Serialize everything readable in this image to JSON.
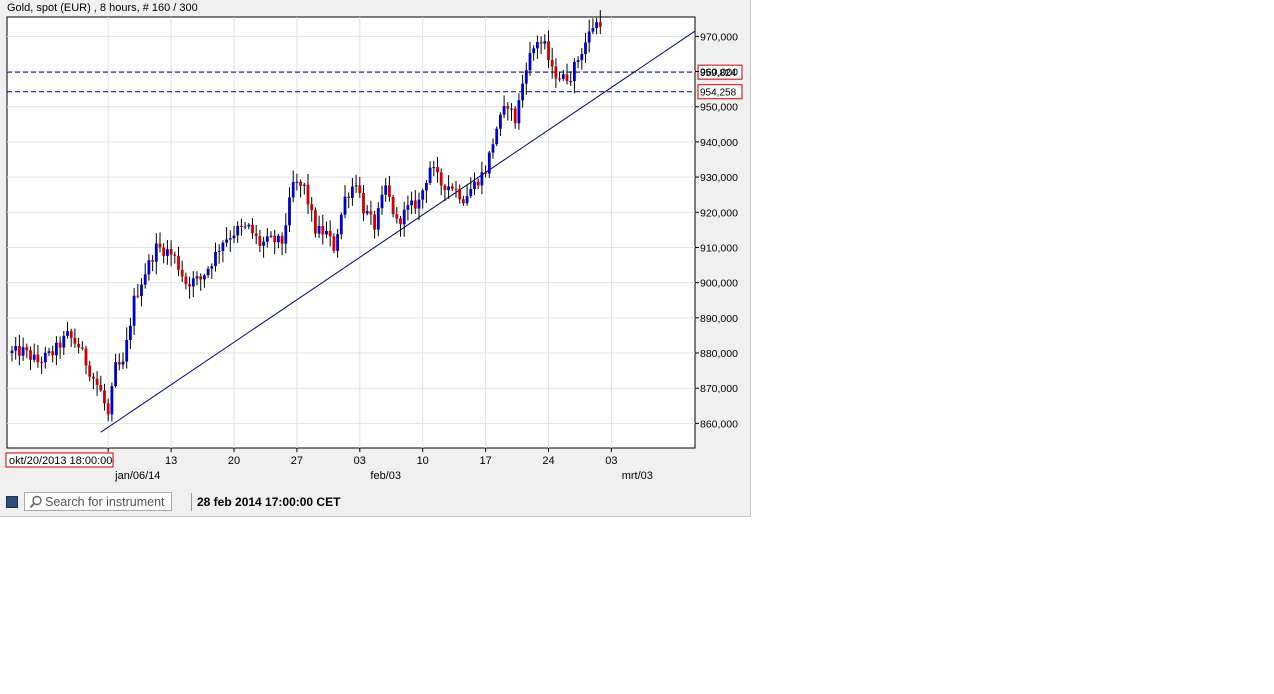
{
  "header": {
    "title": "Gold, spot (EUR) , 8 hours, # 160 / 300"
  },
  "footer": {
    "search_placeholder": "Search for instrument",
    "datetime": "28 feb 2014 17:00:00 CET",
    "series_color": "#2f4d7a"
  },
  "chart_data": {
    "type": "candlestick",
    "title": "Gold, spot (EUR) , 8 hours, # 160 / 300",
    "ylim": [
      853000,
      975500
    ],
    "y_ticks": [
      "860,000",
      "870,000",
      "880,000",
      "890,000",
      "900,000",
      "910,000",
      "920,000",
      "930,000",
      "940,000",
      "950,000",
      "960,000",
      "970,000"
    ],
    "x_ticks": [
      "06",
      "13",
      "20",
      "27",
      "03",
      "10",
      "17",
      "24",
      "03"
    ],
    "x_month_labels": [
      "jan/06/14",
      "feb/03",
      "mrt/03"
    ],
    "start_label": "okt/20/2013 18:00:00",
    "candle_count": 160,
    "up_color": "#0000cc",
    "down_color": "#cc0000",
    "grid": true,
    "horizontal_lines": [
      {
        "label": "959,824",
        "value": 959824,
        "color": "#000080"
      },
      {
        "label": "954,258",
        "value": 954258,
        "color": "#000080"
      }
    ],
    "trendline": {
      "from": 857500,
      "to": 971500,
      "color": "#000080"
    },
    "anchors": [
      [
        0,
        880000
      ],
      [
        4,
        880500
      ],
      [
        8,
        877500
      ],
      [
        12,
        880000
      ],
      [
        16,
        885000
      ],
      [
        19,
        882000
      ],
      [
        22,
        875000
      ],
      [
        25,
        869000
      ],
      [
        27,
        862000
      ],
      [
        29,
        876000
      ],
      [
        31,
        876500
      ],
      [
        34,
        895000
      ],
      [
        37,
        903000
      ],
      [
        40,
        910000
      ],
      [
        43,
        909000
      ],
      [
        45,
        907000
      ],
      [
        48,
        900000
      ],
      [
        52,
        901000
      ],
      [
        55,
        906000
      ],
      [
        58,
        912000
      ],
      [
        62,
        915000
      ],
      [
        65,
        915500
      ],
      [
        68,
        911000
      ],
      [
        71,
        912000
      ],
      [
        74,
        911500
      ],
      [
        77,
        928000
      ],
      [
        80,
        927000
      ],
      [
        83,
        915000
      ],
      [
        86,
        914000
      ],
      [
        88,
        910000
      ],
      [
        91,
        924000
      ],
      [
        94,
        929000
      ],
      [
        96,
        921000
      ],
      [
        99,
        916000
      ],
      [
        102,
        927000
      ],
      [
        105,
        917000
      ],
      [
        108,
        921000
      ],
      [
        111,
        923000
      ],
      [
        114,
        933000
      ],
      [
        117,
        928000
      ],
      [
        120,
        927500
      ],
      [
        123,
        924000
      ],
      [
        126,
        928000
      ],
      [
        129,
        932000
      ],
      [
        132,
        944000
      ],
      [
        135,
        951000
      ],
      [
        137,
        946000
      ],
      [
        140,
        962000
      ],
      [
        143,
        969000
      ],
      [
        145,
        967000
      ],
      [
        147,
        960000
      ],
      [
        150,
        958000
      ],
      [
        152,
        959000
      ],
      [
        155,
        966000
      ],
      [
        158,
        973000
      ],
      [
        161,
        975000
      ],
      [
        163,
        970000
      ],
      [
        166,
        971000
      ],
      [
        168,
        966000
      ],
      [
        169,
        960000
      ]
    ]
  }
}
